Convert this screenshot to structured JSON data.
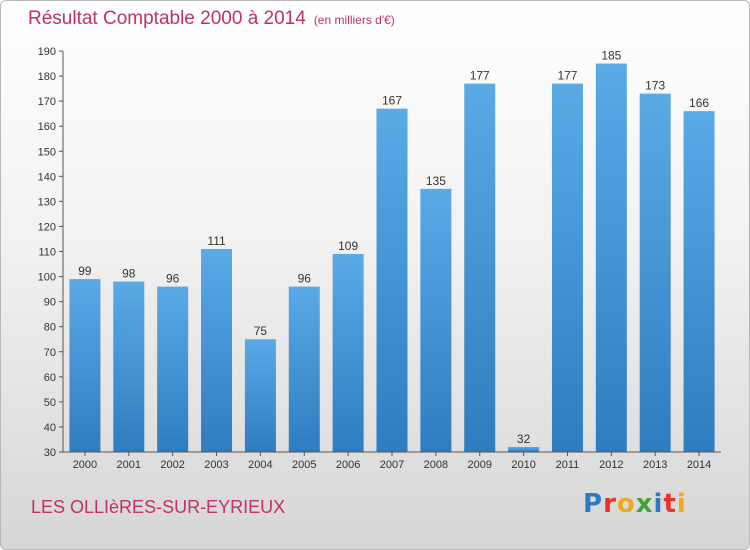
{
  "header": {
    "title": "Résultat Comptable 2000 à 2014",
    "subtitle": "(en milliers d'€)"
  },
  "footer": {
    "commune": "LES OLLIèRES-SUR-EYRIEUX",
    "logo": {
      "text": "Proxiti",
      "letters": [
        {
          "ch": "P",
          "color": "#2f78c4"
        },
        {
          "ch": "r",
          "color": "#e8322a"
        },
        {
          "ch": "o",
          "color": "#f2a81d"
        },
        {
          "ch": "x",
          "color": "#3fa435"
        },
        {
          "ch": "i",
          "color": "#2f78c4"
        },
        {
          "ch": "t",
          "color": "#e8322a"
        },
        {
          "ch": "i",
          "color": "#f2a81d"
        }
      ]
    }
  },
  "colors": {
    "title": "#c0306a",
    "bar_light": "#5aaae6",
    "bar_dark": "#2f7cc0",
    "axis": "#555555"
  },
  "chart_data": {
    "type": "bar",
    "title": "Résultat Comptable 2000 à 2014",
    "subtitle": "(en milliers d'€)",
    "categories": [
      "2000",
      "2001",
      "2002",
      "2003",
      "2004",
      "2005",
      "2006",
      "2007",
      "2008",
      "2009",
      "2010",
      "2011",
      "2012",
      "2013",
      "2014"
    ],
    "values": [
      99,
      98,
      96,
      111,
      75,
      96,
      109,
      167,
      135,
      177,
      32,
      177,
      185,
      173,
      166
    ],
    "ylim": [
      30,
      190
    ],
    "yticks": [
      30,
      40,
      50,
      60,
      70,
      80,
      90,
      100,
      110,
      120,
      130,
      140,
      150,
      160,
      170,
      180,
      190
    ],
    "grid": false,
    "data_labels": true
  }
}
